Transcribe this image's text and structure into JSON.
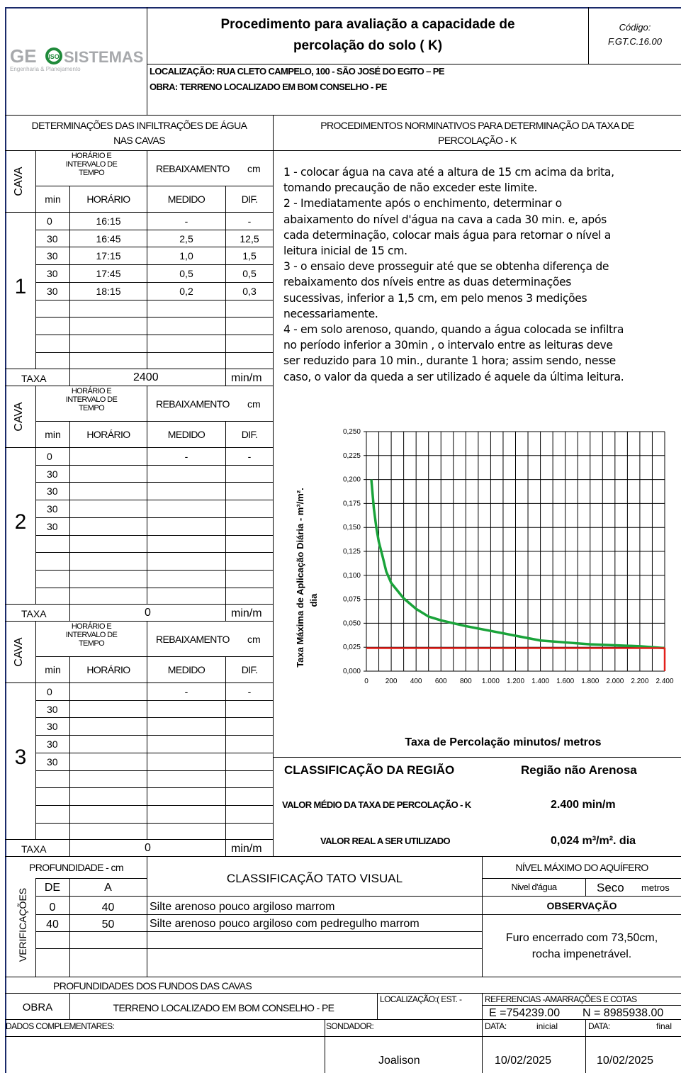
{
  "header": {
    "logo_text": "GE SISTEMAS",
    "logo_sub": "Engenharia & Planejamento",
    "title_line1": "Procedimento para avaliação a capacidade de",
    "title_line2": "percolação do solo ( K)",
    "code_label": "Código:",
    "code_value": "F.GT.C.16.00",
    "localizacao": "LOCALIZAÇÃO: RUA CLETO CAMPELO, 100 - SÃO JOSÉ DO EGITO – PE",
    "obra": "OBRA: TERRENO LOCALIZADO EM BOM CONSELHO - PE"
  },
  "left_header": {
    "line1": "DETERMINAÇÕES DAS INFILTRAÇÕES DE ÁGUA",
    "line2": "NAS CAVAS"
  },
  "right_header": {
    "line1": "PROCEDIMENTOS NORMINATIVOS PARA DETERMINAÇÃO DA TAXA DE",
    "line2": "PERCOLAÇÃO - K"
  },
  "table_labels": {
    "cava": "CAVA",
    "horario_intervalo_1": "HORÁRIO E",
    "horario_intervalo_2": "INTERVALO DE",
    "horario_intervalo_3": "TEMPO",
    "rebaixamento": "REBAIXAMENTO",
    "cm": "cm",
    "min": "min",
    "horario": "HORÁRIO",
    "medido": "MEDIDO",
    "dif": "DIF.",
    "taxa": "TAXA",
    "min_m": "min/m"
  },
  "cavas": [
    {
      "number": "1",
      "taxa": "2400",
      "rows": [
        {
          "min": "0",
          "horario": "16:15",
          "medido": "-",
          "dif": "-"
        },
        {
          "min": "30",
          "horario": "16:45",
          "medido": "2,5",
          "dif": "12,5"
        },
        {
          "min": "30",
          "horario": "17:15",
          "medido": "1,0",
          "dif": "1,5"
        },
        {
          "min": "30",
          "horario": "17:45",
          "medido": "0,5",
          "dif": "0,5"
        },
        {
          "min": "30",
          "horario": "18:15",
          "medido": "0,2",
          "dif": "0,3"
        }
      ]
    },
    {
      "number": "2",
      "taxa": "0",
      "rows": [
        {
          "min": "0",
          "horario": "",
          "medido": "-",
          "dif": "-"
        },
        {
          "min": "30",
          "horario": "",
          "medido": "",
          "dif": ""
        },
        {
          "min": "30",
          "horario": "",
          "medido": "",
          "dif": ""
        },
        {
          "min": "30",
          "horario": "",
          "medido": "",
          "dif": ""
        },
        {
          "min": "30",
          "horario": "",
          "medido": "",
          "dif": ""
        }
      ]
    },
    {
      "number": "3",
      "taxa": "0",
      "rows": [
        {
          "min": "0",
          "horario": "",
          "medido": "-",
          "dif": "-"
        },
        {
          "min": "30",
          "horario": "",
          "medido": "",
          "dif": ""
        },
        {
          "min": "30",
          "horario": "",
          "medido": "",
          "dif": ""
        },
        {
          "min": "30",
          "horario": "",
          "medido": "",
          "dif": ""
        },
        {
          "min": "30",
          "horario": "",
          "medido": "",
          "dif": ""
        }
      ]
    }
  ],
  "procedures": [
    "1 - colocar água na cava até a altura de 15 cm acima da brita,",
    "tomando precaução de não exceder este limite.",
    "2 - Imediatamente após o enchimento, determinar o",
    "abaixamento do nível d'água na cava a cada 30 min. e, após",
    "cada determinação, colocar mais água para retornar o nível a",
    "leitura inicial de 15 cm.",
    "3 - o ensaio deve prosseguir até que se obtenha diferença de",
    "rebaixamento dos níveis entre as duas determinações",
    "sucessivas, inferior a 1,5 cm, em pelo menos 3 medições",
    "necessariamente.",
    "4 - em solo arenoso, quando, quando a água colocada se infiltra",
    "no período inferior a 30min , o intervalo entre as leituras deve",
    "ser reduzido para 10 min., durante 1 hora; assim sendo, nesse",
    "caso, o valor da queda a ser utilizado é aquele da última leitura."
  ],
  "chart_data": {
    "type": "line",
    "xlabel": "Taxa de Percolação minutos/ metros",
    "ylabel_line1": "Taxa Máxima de Aplicação Diária - m³/m².",
    "ylabel_line2": "dia",
    "xlim": [
      0,
      2400
    ],
    "ylim": [
      0,
      0.25
    ],
    "grid": true,
    "x_ticks": [
      "0",
      "200",
      "400",
      "600",
      "800",
      "1.000",
      "1.200",
      "1.400",
      "1.600",
      "1.800",
      "2.000",
      "2.200",
      "2.400"
    ],
    "y_ticks": [
      "0,000",
      "0,025",
      "0,050",
      "0,075",
      "0,100",
      "0,125",
      "0,150",
      "0,175",
      "0,200",
      "0,225",
      "0,250"
    ],
    "series": [
      {
        "color": "#1aa33a",
        "x": [
          40,
          60,
          80,
          100,
          130,
          160,
          200,
          300,
          400,
          500,
          600,
          800,
          1000,
          1200,
          1400,
          1600,
          1800,
          2000,
          2200,
          2400
        ],
        "y": [
          0.2,
          0.17,
          0.15,
          0.135,
          0.12,
          0.104,
          0.092,
          0.076,
          0.065,
          0.057,
          0.053,
          0.047,
          0.042,
          0.037,
          0.032,
          0.03,
          0.028,
          0.027,
          0.026,
          0.024
        ]
      },
      {
        "color": "#e3201b",
        "x": [
          0,
          2400,
          2400
        ],
        "y": [
          0.024,
          0.024,
          0
        ]
      }
    ]
  },
  "summary": {
    "classificacao_label": "CLASSIFICAÇÃO DA REGIÃO",
    "classificacao_value": "Região não Arenosa",
    "valor_medio_label": "VALOR MÉDIO DA TAXA DE PERCOLAÇÃO - K",
    "valor_medio_value": "2.400  min/m",
    "valor_real_label": "VALOR REAL A SER UTILIZADO",
    "valor_real_value": "0,024  m³/m². dia"
  },
  "verificacoes": {
    "side_label": "VERIFICAÇÕES",
    "profundidade": "PROFUNDIDADE - cm",
    "de": "DE",
    "a": "A",
    "classificacao_tato": "CLASSIFICAÇÃO TATO VISUAL",
    "rows": [
      {
        "de": "0",
        "a": "40",
        "desc": "Silte arenoso pouco argiloso marrom"
      },
      {
        "de": "40",
        "a": "50",
        "desc": "Silte arenoso pouco argiloso com pedregulho marrom"
      }
    ],
    "nivel_max": "NÍVEL MÁXIMO DO AQUÍFERO",
    "nivel_dagua": "Nivel d'água",
    "seco": "Seco",
    "metros": "metros",
    "observacao": "OBSERVAÇÃO",
    "obs_line1": "Furo encerrado com 73,50cm,",
    "obs_line2": "rocha impenetrável."
  },
  "footer": {
    "profundidades": "PROFUNDIDADES DOS FUNDOS DAS CAVAS",
    "obra_label": "OBRA",
    "obra_value": "TERRENO LOCALIZADO EM BOM CONSELHO - PE",
    "localizacao_est": "LOCALIZAÇÃO:( EST. -",
    "referencias": "REFERENCIAS -AMARRAÇÕES E COTAS",
    "coord_e": "E =754239.00",
    "coord_n": "N = 8985938.00",
    "dados": "DADOS COMPLEMENTARES:",
    "sondador_label": "SONDADOR:",
    "sondador_value": "Joalison",
    "data_label": "DATA:",
    "inicial": "inicial",
    "final": "final",
    "data_inicial": "10/02/2025",
    "data_final": "10/02/2025"
  }
}
